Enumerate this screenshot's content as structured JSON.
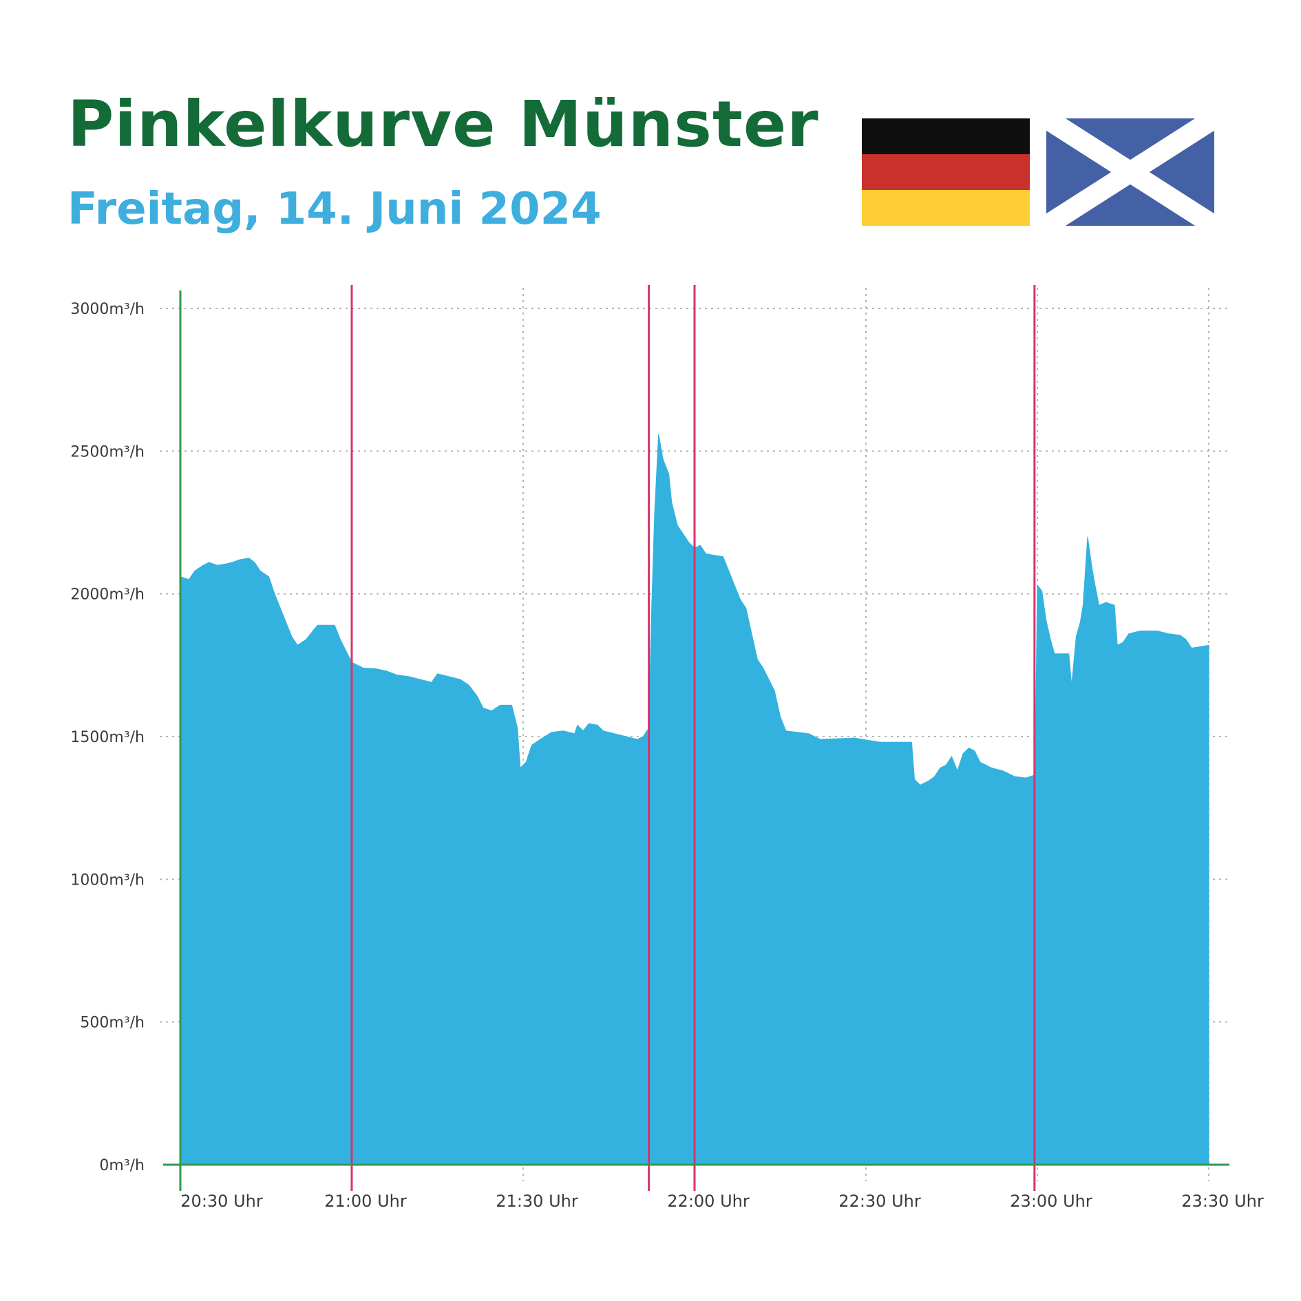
{
  "header": {
    "title": "Pinkelkurve Münster",
    "subtitle": "Freitag, 14. Juni 2024"
  },
  "flags": [
    {
      "name": "germany-flag",
      "colors": [
        "#0f0f0f",
        "#c9312c",
        "#ffcd34"
      ]
    },
    {
      "name": "scotland-flag",
      "colors": [
        "#4461a6",
        "#ffffff"
      ]
    }
  ],
  "colors": {
    "area": "#33b2df",
    "axis": "#2f9a4e",
    "event_line": "#d6336c",
    "grid": "#b5b5b5",
    "title": "#136b38",
    "subtitle": "#3daedd"
  },
  "chart_data": {
    "type": "area",
    "title": "Pinkelkurve Münster",
    "subtitle": "Freitag, 14. Juni 2024",
    "xlabel": "",
    "ylabel": "",
    "x_unit": "minutes after 20:30",
    "ylim": [
      0,
      3000
    ],
    "y_ticks": [
      {
        "value": 0,
        "label": "0m³/h"
      },
      {
        "value": 500,
        "label": "500m³/h"
      },
      {
        "value": 1000,
        "label": "1000m³/h"
      },
      {
        "value": 1500,
        "label": "1500m³/h"
      },
      {
        "value": 2000,
        "label": "2000m³/h"
      },
      {
        "value": 2500,
        "label": "2500m³/h"
      },
      {
        "value": 3000,
        "label": "3000m³/h"
      }
    ],
    "x_ticks": [
      {
        "value": 0,
        "label": "20:30 Uhr"
      },
      {
        "value": 30,
        "label": "21:00 Uhr"
      },
      {
        "value": 60,
        "label": "21:30 Uhr"
      },
      {
        "value": 90,
        "label": "22:00 Uhr"
      },
      {
        "value": 120,
        "label": "22:30 Uhr"
      },
      {
        "value": 150,
        "label": "23:00 Uhr"
      },
      {
        "value": 180,
        "label": "23:30 Uhr"
      }
    ],
    "grid": true,
    "event_lines": [
      30,
      82,
      90,
      149.5
    ],
    "series": [
      {
        "points": [
          [
            0,
            2060
          ],
          [
            1.5,
            2050
          ],
          [
            2.5,
            2080
          ],
          [
            4,
            2100
          ],
          [
            5,
            2110
          ],
          [
            6.5,
            2100
          ],
          [
            8,
            2105
          ],
          [
            9,
            2110
          ],
          [
            10.5,
            2120
          ],
          [
            12,
            2125
          ],
          [
            13,
            2110
          ],
          [
            14,
            2080
          ],
          [
            15.5,
            2060
          ],
          [
            16.5,
            2000
          ],
          [
            17.5,
            1950
          ],
          [
            18.5,
            1900
          ],
          [
            19.5,
            1850
          ],
          [
            20.5,
            1820
          ],
          [
            22,
            1840
          ],
          [
            24,
            1890
          ],
          [
            27,
            1890
          ],
          [
            28,
            1840
          ],
          [
            29,
            1800
          ],
          [
            30,
            1760
          ],
          [
            32,
            1740
          ],
          [
            34,
            1738
          ],
          [
            36,
            1730
          ],
          [
            38,
            1715
          ],
          [
            40,
            1710
          ],
          [
            42,
            1700
          ],
          [
            44,
            1690
          ],
          [
            45,
            1720
          ],
          [
            47,
            1710
          ],
          [
            49,
            1700
          ],
          [
            50.5,
            1680
          ],
          [
            52,
            1640
          ],
          [
            53,
            1600
          ],
          [
            54.5,
            1590
          ],
          [
            56,
            1610
          ],
          [
            58,
            1610
          ],
          [
            59,
            1530
          ],
          [
            59.5,
            1390
          ],
          [
            60.5,
            1410
          ],
          [
            61.5,
            1470
          ],
          [
            63,
            1490
          ],
          [
            65,
            1515
          ],
          [
            67,
            1520
          ],
          [
            69,
            1510
          ],
          [
            69.5,
            1540
          ],
          [
            70.5,
            1520
          ],
          [
            71.5,
            1545
          ],
          [
            73,
            1540
          ],
          [
            74,
            1520
          ],
          [
            76,
            1510
          ],
          [
            78,
            1500
          ],
          [
            80,
            1490
          ],
          [
            81,
            1500
          ],
          [
            82,
            1530
          ],
          [
            82.5,
            1960
          ],
          [
            83,
            2280
          ],
          [
            83.7,
            2560
          ],
          [
            84.5,
            2470
          ],
          [
            85.5,
            2420
          ],
          [
            86,
            2320
          ],
          [
            87,
            2240
          ],
          [
            88,
            2210
          ],
          [
            89,
            2180
          ],
          [
            90,
            2160
          ],
          [
            91,
            2170
          ],
          [
            92,
            2140
          ],
          [
            95,
            2130
          ],
          [
            96,
            2080
          ],
          [
            97,
            2030
          ],
          [
            98,
            1980
          ],
          [
            99,
            1950
          ],
          [
            100,
            1860
          ],
          [
            101,
            1770
          ],
          [
            102,
            1740
          ],
          [
            103,
            1700
          ],
          [
            104,
            1660
          ],
          [
            105,
            1570
          ],
          [
            106,
            1520
          ],
          [
            110,
            1510
          ],
          [
            112,
            1490
          ],
          [
            118,
            1495
          ],
          [
            121,
            1485
          ],
          [
            122.5,
            1480
          ],
          [
            128,
            1480
          ],
          [
            128.5,
            1350
          ],
          [
            129.5,
            1330
          ],
          [
            131,
            1345
          ],
          [
            132,
            1360
          ],
          [
            133,
            1390
          ],
          [
            134,
            1400
          ],
          [
            135,
            1430
          ],
          [
            136,
            1380
          ],
          [
            137,
            1440
          ],
          [
            138,
            1460
          ],
          [
            139,
            1450
          ],
          [
            140,
            1410
          ],
          [
            142,
            1390
          ],
          [
            144,
            1380
          ],
          [
            146,
            1360
          ],
          [
            148,
            1355
          ],
          [
            149.5,
            1365
          ],
          [
            149.7,
            1530
          ],
          [
            150,
            2030
          ],
          [
            150.8,
            2010
          ],
          [
            151.5,
            1910
          ],
          [
            152.3,
            1840
          ],
          [
            153,
            1790
          ],
          [
            155.5,
            1790
          ],
          [
            156,
            1680
          ],
          [
            156.8,
            1850
          ],
          [
            157.5,
            1900
          ],
          [
            158,
            1960
          ],
          [
            158.8,
            2200
          ],
          [
            159.5,
            2100
          ],
          [
            160,
            2040
          ],
          [
            160.8,
            1960
          ],
          [
            162,
            1970
          ],
          [
            163.5,
            1960
          ],
          [
            164,
            1820
          ],
          [
            165,
            1830
          ],
          [
            166,
            1860
          ],
          [
            168,
            1870
          ],
          [
            171,
            1870
          ],
          [
            173,
            1860
          ],
          [
            175,
            1855
          ],
          [
            176,
            1840
          ],
          [
            177,
            1810
          ],
          [
            180,
            1820
          ]
        ]
      }
    ]
  }
}
